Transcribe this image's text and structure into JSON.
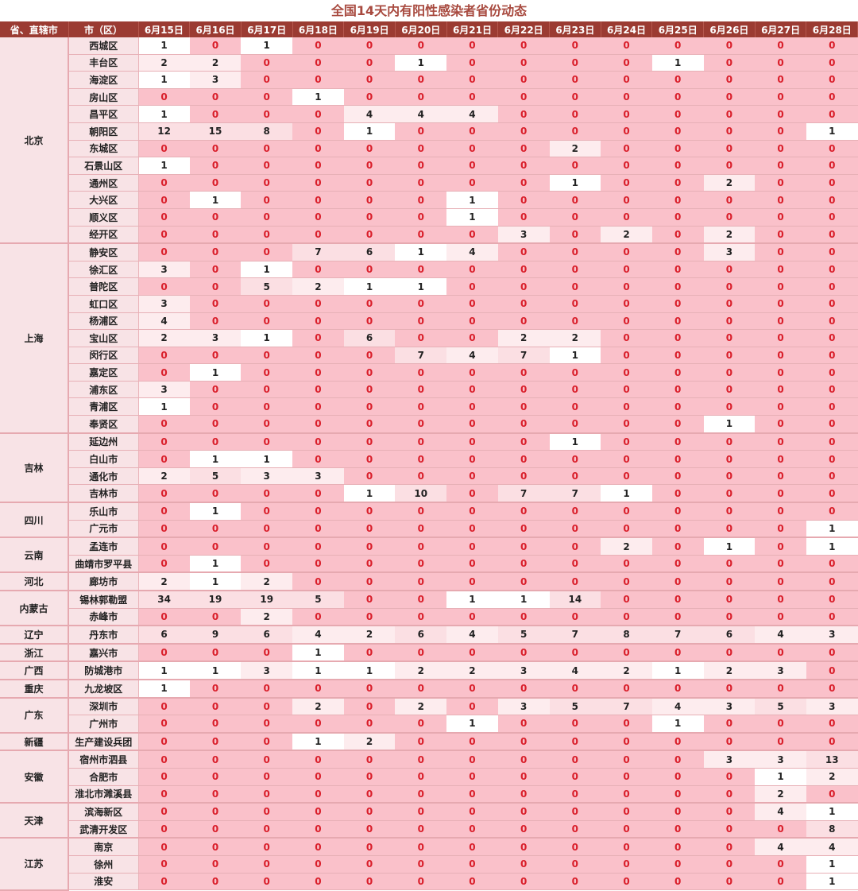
{
  "title": "全国14天内有阳性感染者省份动态",
  "headers": [
    "省、直辖市",
    "市（区）",
    "6月15日",
    "6月16日",
    "6月17日",
    "6月18日",
    "6月19日",
    "6月20日",
    "6月21日",
    "6月22日",
    "6月23日",
    "6月24日",
    "6月25日",
    "6月26日",
    "6月27日",
    "6月28日"
  ],
  "groups": [
    {
      "province": "北京",
      "rows": [
        {
          "city": "西城区",
          "values": [
            1,
            0,
            1,
            0,
            0,
            0,
            0,
            0,
            0,
            0,
            0,
            0,
            0,
            0
          ]
        },
        {
          "city": "丰台区",
          "values": [
            2,
            2,
            0,
            0,
            0,
            1,
            0,
            0,
            0,
            0,
            1,
            0,
            0,
            0
          ]
        },
        {
          "city": "海淀区",
          "values": [
            1,
            3,
            0,
            0,
            0,
            0,
            0,
            0,
            0,
            0,
            0,
            0,
            0,
            0
          ]
        },
        {
          "city": "房山区",
          "values": [
            0,
            0,
            0,
            1,
            0,
            0,
            0,
            0,
            0,
            0,
            0,
            0,
            0,
            0
          ]
        },
        {
          "city": "昌平区",
          "values": [
            1,
            0,
            0,
            0,
            4,
            4,
            4,
            0,
            0,
            0,
            0,
            0,
            0,
            0
          ]
        },
        {
          "city": "朝阳区",
          "values": [
            12,
            15,
            8,
            0,
            1,
            0,
            0,
            0,
            0,
            0,
            0,
            0,
            0,
            1
          ]
        },
        {
          "city": "东城区",
          "values": [
            0,
            0,
            0,
            0,
            0,
            0,
            0,
            0,
            2,
            0,
            0,
            0,
            0,
            0
          ]
        },
        {
          "city": "石景山区",
          "values": [
            1,
            0,
            0,
            0,
            0,
            0,
            0,
            0,
            0,
            0,
            0,
            0,
            0,
            0
          ]
        },
        {
          "city": "通州区",
          "values": [
            0,
            0,
            0,
            0,
            0,
            0,
            0,
            0,
            1,
            0,
            0,
            2,
            0,
            0
          ]
        },
        {
          "city": "大兴区",
          "values": [
            0,
            1,
            0,
            0,
            0,
            0,
            1,
            0,
            0,
            0,
            0,
            0,
            0,
            0
          ]
        },
        {
          "city": "顺义区",
          "values": [
            0,
            0,
            0,
            0,
            0,
            0,
            1,
            0,
            0,
            0,
            0,
            0,
            0,
            0
          ]
        },
        {
          "city": "经开区",
          "values": [
            0,
            0,
            0,
            0,
            0,
            0,
            0,
            3,
            0,
            2,
            0,
            2,
            0,
            0
          ]
        }
      ]
    },
    {
      "province": "上海",
      "rows": [
        {
          "city": "静安区",
          "values": [
            0,
            0,
            0,
            7,
            6,
            1,
            4,
            0,
            0,
            0,
            0,
            3,
            0,
            0
          ]
        },
        {
          "city": "徐汇区",
          "values": [
            3,
            0,
            1,
            0,
            0,
            0,
            0,
            0,
            0,
            0,
            0,
            0,
            0,
            0
          ]
        },
        {
          "city": "普陀区",
          "values": [
            0,
            0,
            5,
            2,
            1,
            1,
            0,
            0,
            0,
            0,
            0,
            0,
            0,
            0
          ]
        },
        {
          "city": "虹口区",
          "values": [
            3,
            0,
            0,
            0,
            0,
            0,
            0,
            0,
            0,
            0,
            0,
            0,
            0,
            0
          ]
        },
        {
          "city": "杨浦区",
          "values": [
            4,
            0,
            0,
            0,
            0,
            0,
            0,
            0,
            0,
            0,
            0,
            0,
            0,
            0
          ]
        },
        {
          "city": "宝山区",
          "values": [
            2,
            3,
            1,
            0,
            6,
            0,
            0,
            2,
            2,
            0,
            0,
            0,
            0,
            0
          ]
        },
        {
          "city": "闵行区",
          "values": [
            0,
            0,
            0,
            0,
            0,
            7,
            4,
            7,
            1,
            0,
            0,
            0,
            0,
            0
          ]
        },
        {
          "city": "嘉定区",
          "values": [
            0,
            1,
            0,
            0,
            0,
            0,
            0,
            0,
            0,
            0,
            0,
            0,
            0,
            0
          ]
        },
        {
          "city": "浦东区",
          "values": [
            3,
            0,
            0,
            0,
            0,
            0,
            0,
            0,
            0,
            0,
            0,
            0,
            0,
            0
          ]
        },
        {
          "city": "青浦区",
          "values": [
            1,
            0,
            0,
            0,
            0,
            0,
            0,
            0,
            0,
            0,
            0,
            0,
            0,
            0
          ]
        },
        {
          "city": "奉贤区",
          "values": [
            0,
            0,
            0,
            0,
            0,
            0,
            0,
            0,
            0,
            0,
            0,
            1,
            0,
            0
          ]
        }
      ]
    },
    {
      "province": "吉林",
      "rows": [
        {
          "city": "延边州",
          "values": [
            0,
            0,
            0,
            0,
            0,
            0,
            0,
            0,
            1,
            0,
            0,
            0,
            0,
            0
          ]
        },
        {
          "city": "白山市",
          "values": [
            0,
            1,
            1,
            0,
            0,
            0,
            0,
            0,
            0,
            0,
            0,
            0,
            0,
            0
          ]
        },
        {
          "city": "通化市",
          "values": [
            2,
            5,
            3,
            3,
            0,
            0,
            0,
            0,
            0,
            0,
            0,
            0,
            0,
            0
          ]
        },
        {
          "city": "吉林市",
          "values": [
            0,
            0,
            0,
            0,
            1,
            10,
            0,
            7,
            7,
            1,
            0,
            0,
            0,
            0
          ]
        }
      ]
    },
    {
      "province": "四川",
      "rows": [
        {
          "city": "乐山市",
          "values": [
            0,
            1,
            0,
            0,
            0,
            0,
            0,
            0,
            0,
            0,
            0,
            0,
            0,
            0
          ]
        },
        {
          "city": "广元市",
          "values": [
            0,
            0,
            0,
            0,
            0,
            0,
            0,
            0,
            0,
            0,
            0,
            0,
            0,
            1
          ]
        }
      ]
    },
    {
      "province": "云南",
      "rows": [
        {
          "city": "孟连市",
          "values": [
            0,
            0,
            0,
            0,
            0,
            0,
            0,
            0,
            0,
            2,
            0,
            1,
            0,
            1
          ]
        },
        {
          "city": "曲靖市罗平县",
          "values": [
            0,
            1,
            0,
            0,
            0,
            0,
            0,
            0,
            0,
            0,
            0,
            0,
            0,
            0
          ]
        }
      ]
    },
    {
      "province": "河北",
      "rows": [
        {
          "city": "廊坊市",
          "values": [
            2,
            1,
            2,
            0,
            0,
            0,
            0,
            0,
            0,
            0,
            0,
            0,
            0,
            0
          ]
        }
      ]
    },
    {
      "province": "内蒙古",
      "rows": [
        {
          "city": "锡林郭勒盟",
          "values": [
            34,
            19,
            19,
            5,
            0,
            0,
            1,
            1,
            14,
            0,
            0,
            0,
            0,
            0
          ]
        },
        {
          "city": "赤峰市",
          "values": [
            0,
            0,
            2,
            0,
            0,
            0,
            0,
            0,
            0,
            0,
            0,
            0,
            0,
            0
          ]
        }
      ]
    },
    {
      "province": "辽宁",
      "rows": [
        {
          "city": "丹东市",
          "values": [
            6,
            9,
            6,
            4,
            2,
            6,
            4,
            5,
            7,
            8,
            7,
            6,
            4,
            3
          ]
        }
      ]
    },
    {
      "province": "浙江",
      "rows": [
        {
          "city": "嘉兴市",
          "values": [
            0,
            0,
            0,
            1,
            0,
            0,
            0,
            0,
            0,
            0,
            0,
            0,
            0,
            0
          ]
        }
      ]
    },
    {
      "province": "广西",
      "rows": [
        {
          "city": "防城港市",
          "values": [
            1,
            1,
            3,
            1,
            1,
            2,
            2,
            3,
            4,
            2,
            1,
            2,
            3,
            0
          ]
        }
      ]
    },
    {
      "province": "重庆",
      "rows": [
        {
          "city": "九龙坡区",
          "values": [
            1,
            0,
            0,
            0,
            0,
            0,
            0,
            0,
            0,
            0,
            0,
            0,
            0,
            0
          ]
        }
      ]
    },
    {
      "province": "广东",
      "rows": [
        {
          "city": "深圳市",
          "values": [
            0,
            0,
            0,
            2,
            0,
            2,
            0,
            3,
            5,
            7,
            4,
            3,
            5,
            3
          ]
        },
        {
          "city": "广州市",
          "values": [
            0,
            0,
            0,
            0,
            0,
            0,
            1,
            0,
            0,
            0,
            1,
            0,
            0,
            0
          ]
        }
      ]
    },
    {
      "province": "新疆",
      "rows": [
        {
          "city": "生产建设兵团",
          "values": [
            0,
            0,
            0,
            1,
            2,
            0,
            0,
            0,
            0,
            0,
            0,
            0,
            0,
            0
          ]
        }
      ]
    },
    {
      "province": "安徽",
      "rows": [
        {
          "city": "宿州市泗县",
          "values": [
            0,
            0,
            0,
            0,
            0,
            0,
            0,
            0,
            0,
            0,
            0,
            3,
            3,
            13
          ]
        },
        {
          "city": "合肥市",
          "values": [
            0,
            0,
            0,
            0,
            0,
            0,
            0,
            0,
            0,
            0,
            0,
            0,
            1,
            2
          ]
        },
        {
          "city": "淮北市濉溪县",
          "values": [
            0,
            0,
            0,
            0,
            0,
            0,
            0,
            0,
            0,
            0,
            0,
            0,
            2,
            0
          ]
        }
      ]
    },
    {
      "province": "天津",
      "rows": [
        {
          "city": "滨海新区",
          "values": [
            0,
            0,
            0,
            0,
            0,
            0,
            0,
            0,
            0,
            0,
            0,
            0,
            4,
            1
          ]
        },
        {
          "city": "武清开发区",
          "values": [
            0,
            0,
            0,
            0,
            0,
            0,
            0,
            0,
            0,
            0,
            0,
            0,
            0,
            8
          ]
        }
      ]
    },
    {
      "province": "江苏",
      "rows": [
        {
          "city": "南京",
          "values": [
            0,
            0,
            0,
            0,
            0,
            0,
            0,
            0,
            0,
            0,
            0,
            0,
            4,
            4
          ]
        },
        {
          "city": "徐州",
          "values": [
            0,
            0,
            0,
            0,
            0,
            0,
            0,
            0,
            0,
            0,
            0,
            0,
            0,
            1
          ]
        },
        {
          "city": "淮安",
          "values": [
            0,
            0,
            0,
            0,
            0,
            0,
            0,
            0,
            0,
            0,
            0,
            0,
            0,
            1
          ]
        }
      ]
    }
  ]
}
